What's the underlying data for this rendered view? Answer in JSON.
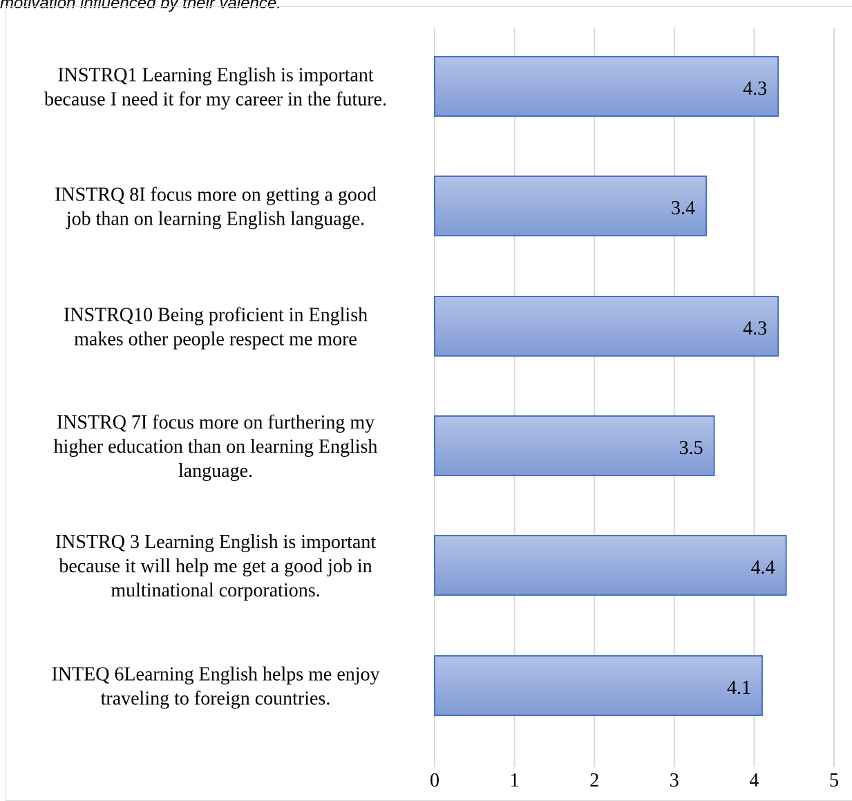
{
  "caption": "motivation influenced by their valence.",
  "chart_data": {
    "type": "bar",
    "orientation": "horizontal",
    "categories": [
      [
        "INSTRQ1 Learning English is important",
        "because I need it for my career in the future."
      ],
      [
        "INSTRQ 8I focus more on getting a good",
        "job than on learning English language."
      ],
      [
        "INSTRQ10 Being proficient in English",
        "makes other people respect me more"
      ],
      [
        "INSTRQ 7I focus more on furthering my",
        "higher education than on learning English",
        "language."
      ],
      [
        "INSTRQ 3 Learning English is important",
        "because it will help me get a good job in",
        "multinational corporations."
      ],
      [
        "INTEQ 6Learning English helps me enjoy",
        "traveling to foreign countries."
      ]
    ],
    "values": [
      4.3,
      3.4,
      4.3,
      3.5,
      4.4,
      4.1
    ],
    "data_labels": [
      "4.3",
      "3.4",
      "4.3",
      "3.5",
      "4.4",
      "4.1"
    ],
    "xlim": [
      0,
      5
    ],
    "xticks": [
      "0",
      "1",
      "2",
      "3",
      "4",
      "5"
    ],
    "grid": true,
    "legend": "none",
    "colors": {
      "bar_top": "#b4c2e6",
      "bar_bottom": "#7f9ad6",
      "bar_edge": "#4472c4",
      "grid": "#d9d9d9"
    }
  }
}
